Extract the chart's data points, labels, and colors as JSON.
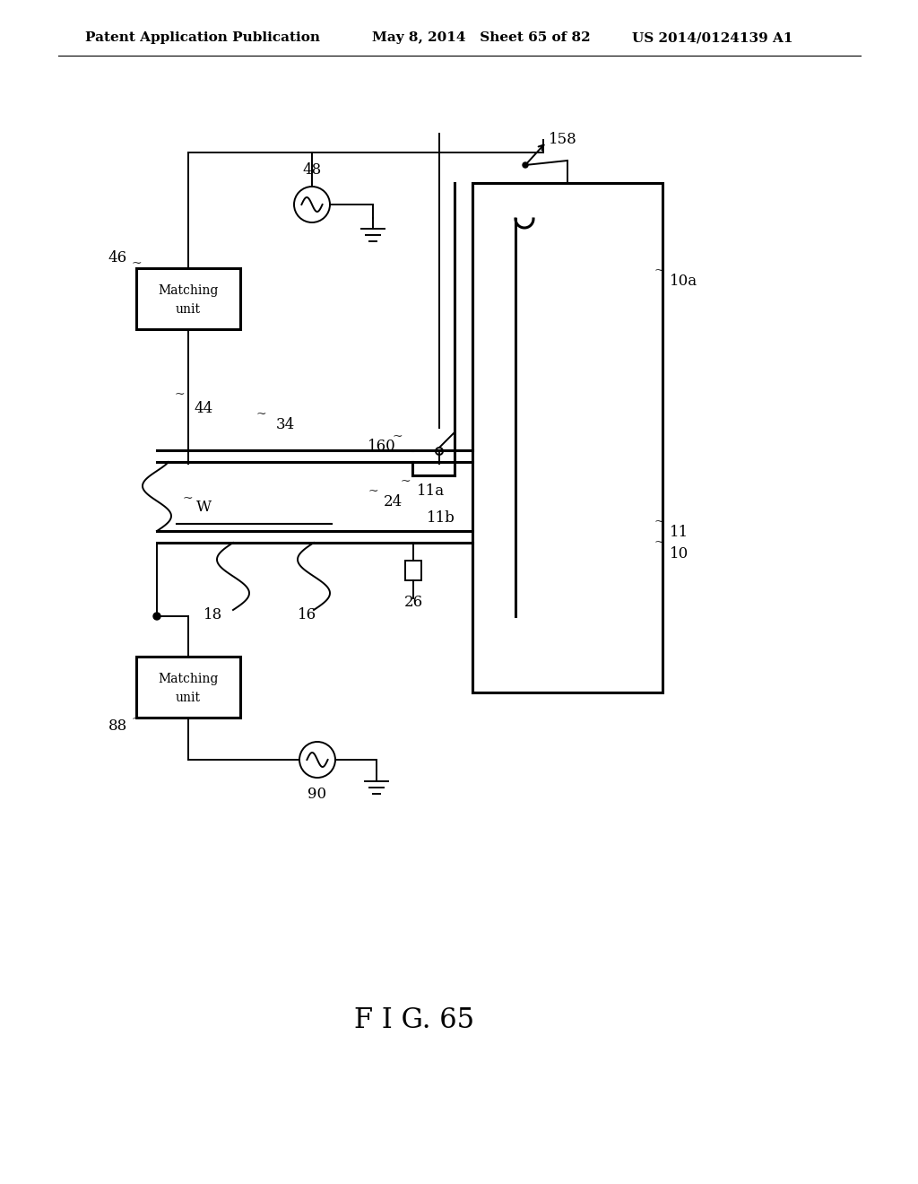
{
  "bg_color": "#ffffff",
  "header_left": "Patent Application Publication",
  "header_mid": "May 8, 2014   Sheet 65 of 82",
  "header_right": "US 2014/0124139 A1",
  "fig_label": "F I G. 65",
  "lw": 1.4,
  "lw2": 2.2
}
